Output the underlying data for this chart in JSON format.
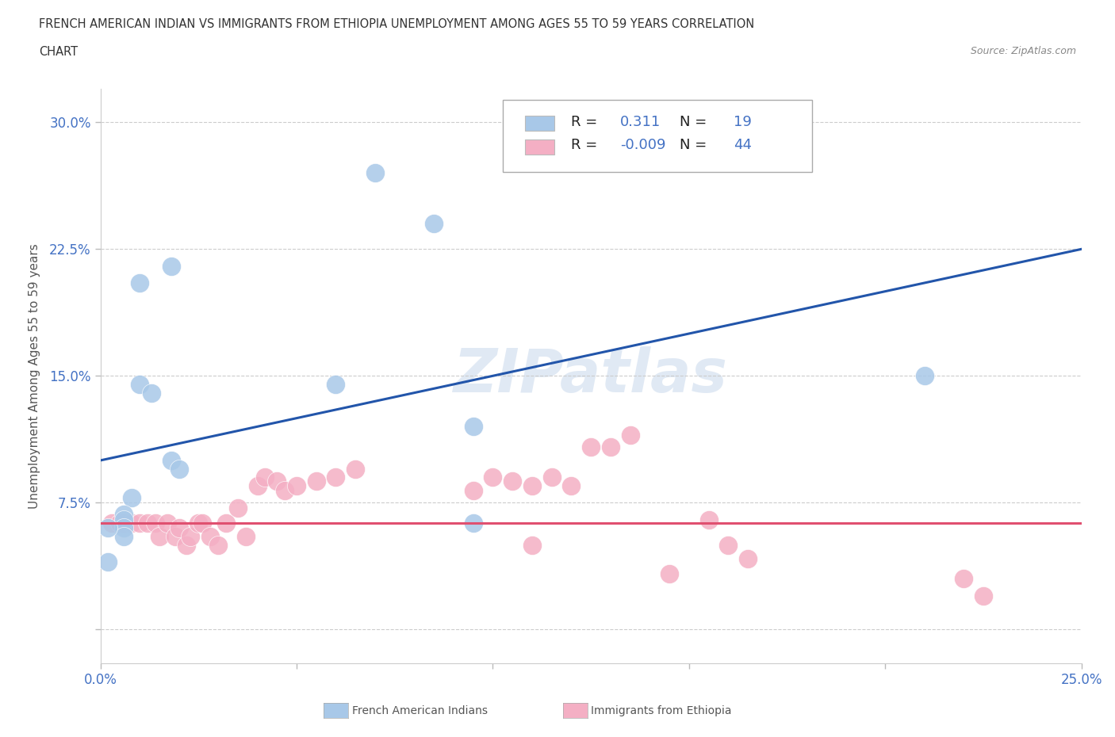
{
  "title_line1": "FRENCH AMERICAN INDIAN VS IMMIGRANTS FROM ETHIOPIA UNEMPLOYMENT AMONG AGES 55 TO 59 YEARS CORRELATION",
  "title_line2": "CHART",
  "source": "Source: ZipAtlas.com",
  "ylabel": "Unemployment Among Ages 55 to 59 years",
  "xlim": [
    0.0,
    0.25
  ],
  "ylim": [
    -0.02,
    0.32
  ],
  "ylim_data": [
    0.0,
    0.3
  ],
  "xticks": [
    0.0,
    0.05,
    0.1,
    0.15,
    0.2,
    0.25
  ],
  "yticks": [
    0.0,
    0.075,
    0.15,
    0.225,
    0.3
  ],
  "blue_r": 0.311,
  "blue_n": 19,
  "pink_r": -0.009,
  "pink_n": 44,
  "blue_color": "#a8c8e8",
  "pink_color": "#f4afc4",
  "blue_line_color": "#2255aa",
  "pink_line_color": "#e05070",
  "watermark": "ZIPatlas",
  "blue_line_x0": 0.0,
  "blue_line_y0": 0.1,
  "blue_line_x1": 0.25,
  "blue_line_y1": 0.225,
  "pink_line_x0": 0.0,
  "pink_line_y0": 0.063,
  "pink_line_x1": 0.25,
  "pink_line_y1": 0.063,
  "blue_scatter_x": [
    0.095,
    0.06,
    0.07,
    0.085,
    0.01,
    0.018,
    0.01,
    0.013,
    0.018,
    0.02,
    0.008,
    0.006,
    0.006,
    0.006,
    0.006,
    0.21,
    0.002,
    0.002,
    0.095
  ],
  "blue_scatter_y": [
    0.12,
    0.145,
    0.27,
    0.24,
    0.205,
    0.215,
    0.145,
    0.14,
    0.1,
    0.095,
    0.078,
    0.068,
    0.065,
    0.06,
    0.055,
    0.15,
    0.04,
    0.06,
    0.063
  ],
  "pink_scatter_x": [
    0.003,
    0.005,
    0.006,
    0.008,
    0.01,
    0.012,
    0.014,
    0.015,
    0.017,
    0.019,
    0.02,
    0.022,
    0.023,
    0.025,
    0.026,
    0.028,
    0.03,
    0.032,
    0.035,
    0.037,
    0.04,
    0.042,
    0.045,
    0.047,
    0.05,
    0.055,
    0.06,
    0.065,
    0.095,
    0.1,
    0.105,
    0.11,
    0.115,
    0.12,
    0.125,
    0.13,
    0.135,
    0.155,
    0.16,
    0.165,
    0.22,
    0.225,
    0.11,
    0.145
  ],
  "pink_scatter_y": [
    0.063,
    0.063,
    0.063,
    0.063,
    0.063,
    0.063,
    0.063,
    0.055,
    0.063,
    0.055,
    0.06,
    0.05,
    0.055,
    0.063,
    0.063,
    0.055,
    0.05,
    0.063,
    0.072,
    0.055,
    0.085,
    0.09,
    0.088,
    0.082,
    0.085,
    0.088,
    0.09,
    0.095,
    0.082,
    0.09,
    0.088,
    0.085,
    0.09,
    0.085,
    0.108,
    0.108,
    0.115,
    0.065,
    0.05,
    0.042,
    0.03,
    0.02,
    0.05,
    0.033
  ]
}
